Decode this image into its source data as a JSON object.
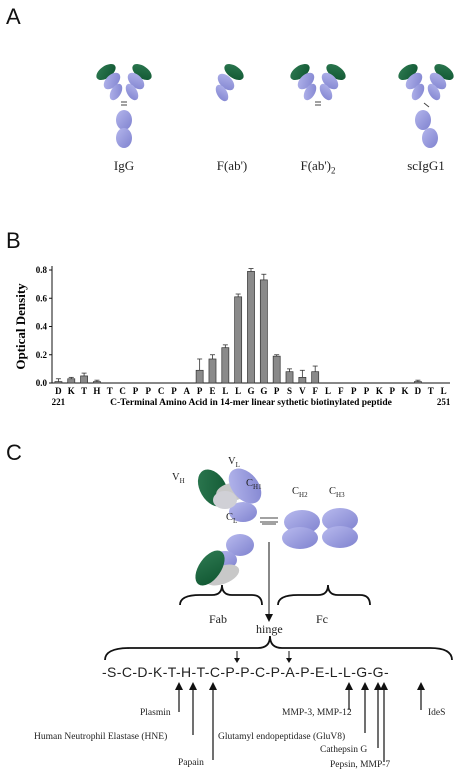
{
  "panels": {
    "a": "A",
    "b": "B",
    "c": "C"
  },
  "panel_a": {
    "labels": [
      "IgG",
      "F(ab')",
      "F(ab')2",
      "scIgG1"
    ]
  },
  "chart_data": {
    "type": "bar",
    "ylabel": "Optical Density",
    "xlabel": "C-Terminal Amino Acid in 14-mer linear sythetic biotinylated peptide",
    "ylim": [
      0,
      0.8
    ],
    "yticks": [
      "0.0",
      "0.2",
      "0.4",
      "0.6",
      "0.8"
    ],
    "x_start_label": "221",
    "x_end_label": "251",
    "categories": [
      "D",
      "K",
      "T",
      "H",
      "T",
      "C",
      "P",
      "P",
      "C",
      "P",
      "A",
      "P",
      "E",
      "L",
      "L",
      "G",
      "G",
      "P",
      "S",
      "V",
      "F",
      "L",
      "F",
      "P",
      "P",
      "K",
      "P",
      "K",
      "D",
      "T",
      "L"
    ],
    "values": [
      0.01,
      0.03,
      0.05,
      0.01,
      0.0,
      0.0,
      0.0,
      0.0,
      0.0,
      0.0,
      0.0,
      0.09,
      0.17,
      0.25,
      0.61,
      0.79,
      0.73,
      0.19,
      0.08,
      0.04,
      0.08,
      0.0,
      0.0,
      0.0,
      0.0,
      0.0,
      0.0,
      0.0,
      0.01,
      0.0,
      0.0
    ],
    "errors": [
      0.02,
      0.01,
      0.02,
      0.01,
      0,
      0,
      0,
      0,
      0,
      0,
      0,
      0.08,
      0.03,
      0.02,
      0.02,
      0.02,
      0.04,
      0.01,
      0.02,
      0.05,
      0.04,
      0,
      0,
      0,
      0,
      0,
      0,
      0,
      0.01,
      0,
      0
    ],
    "grid": false
  },
  "panel_c": {
    "domain_labels": {
      "vh": "V",
      "vh_sub": "H",
      "vl": "V",
      "vl_sub": "L",
      "ch1": "C",
      "ch1_sub": "H1",
      "cl": "C",
      "cl_sub": "L",
      "ch2": "C",
      "ch2_sub": "H2",
      "ch3": "C",
      "ch3_sub": "H3"
    },
    "fab": "Fab",
    "fc": "Fc",
    "hinge": "hinge",
    "sequence": "-S-C-D-K-T-H-T-C-P-P-C-P-A-P-E-L-L-G-G-",
    "enzymes": [
      "Plasmin",
      "Human Neutrophil Elastase (HNE)",
      "Papain",
      "MMP-3, MMP-12",
      "Glutamyl endopeptidase (GluV8)",
      "Cathepsin G",
      "Pepsin, MMP-7",
      "IdeS"
    ]
  }
}
